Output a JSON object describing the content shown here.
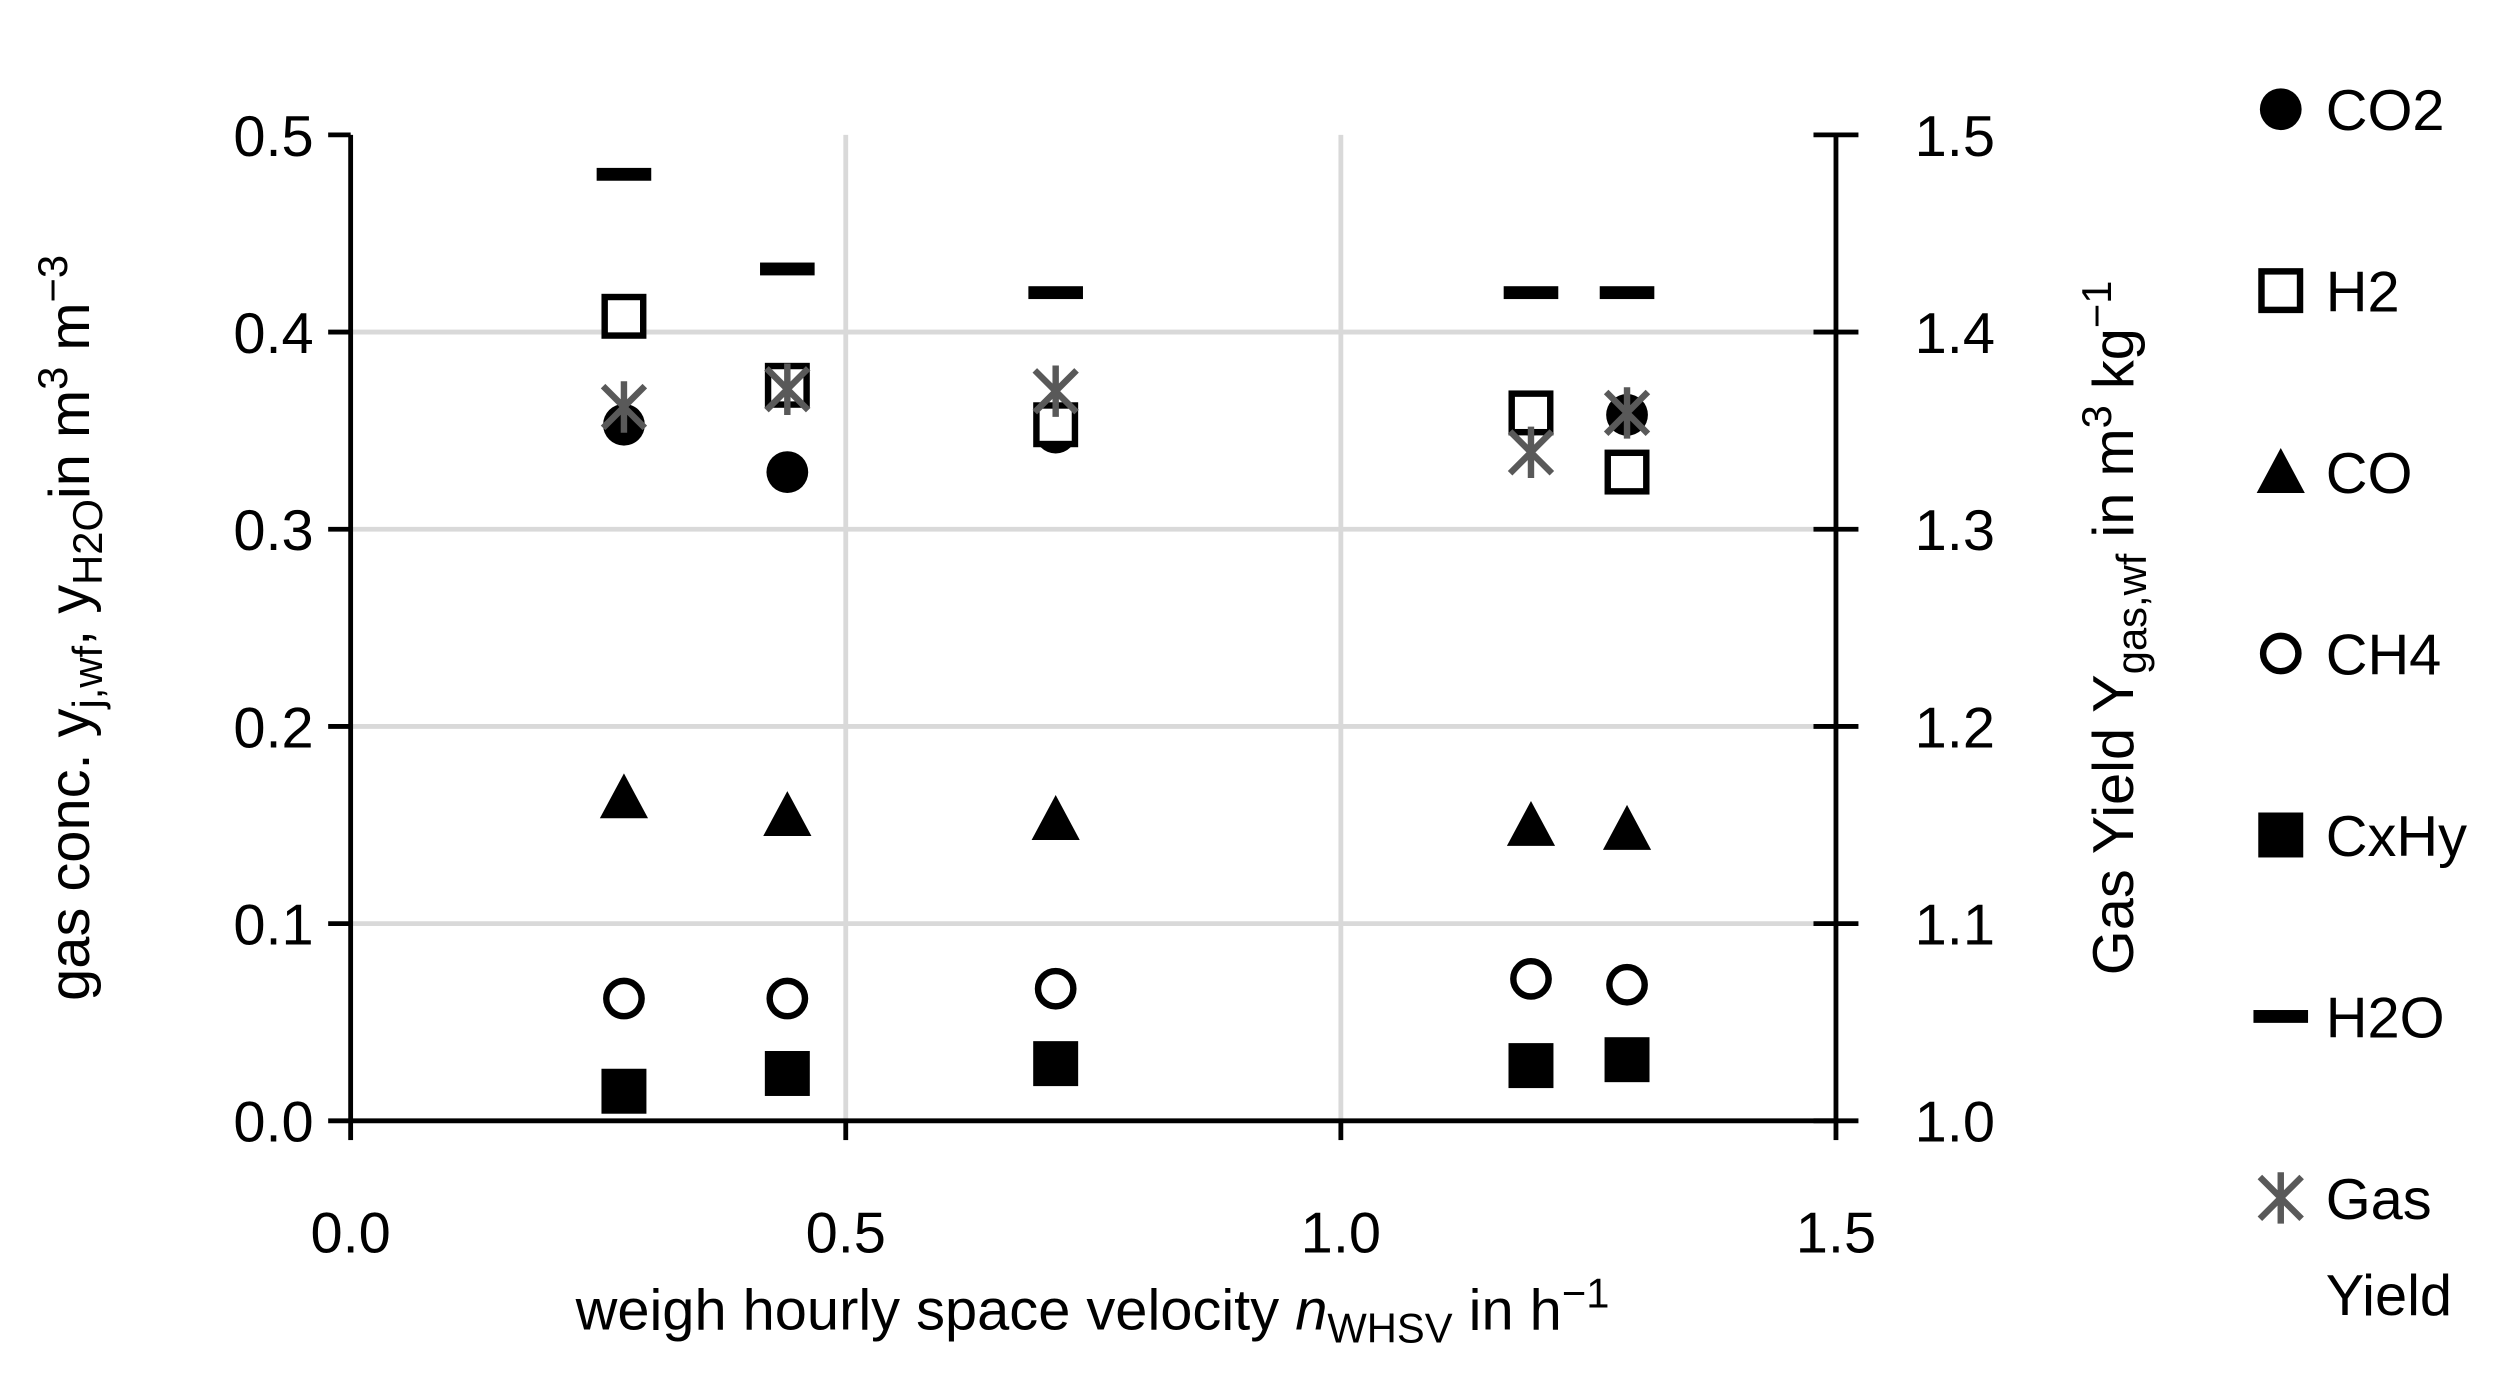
{
  "chart_data": {
    "type": "scatter",
    "x_label": [
      "weigh hourly space velocity ",
      "n",
      "WHSV",
      " in h",
      "−1"
    ],
    "y_label": [
      "gas conc. y",
      "j,wf",
      ",  y",
      "H2O",
      "in m",
      "3",
      " m",
      "−3"
    ],
    "y2_label": [
      "Gas Yield Y",
      "gas,wf",
      " in m",
      "3",
      " kg",
      "−1"
    ],
    "xlim": [
      0,
      1.5
    ],
    "xticks": [
      {
        "value": 0,
        "label": "0.0"
      },
      0.5,
      {
        "value": 1,
        "label": "1.0"
      },
      1.5
    ],
    "ylim": [
      0,
      0.5
    ],
    "yticks": [
      {
        "value": 0,
        "label": "0.0"
      },
      0.1,
      0.2,
      0.3,
      0.4,
      0.5
    ],
    "y2lim": [
      1,
      1.5
    ],
    "y2ticks": [
      {
        "value": 1,
        "label": "1.0"
      },
      1.1,
      1.2,
      1.3,
      1.4,
      1.5
    ],
    "grid": true,
    "legend": "right",
    "x": [
      0.276,
      0.441,
      0.712,
      1.192,
      1.289
    ],
    "series": [
      {
        "name": "CO2",
        "color": "#000000",
        "marker": "filled-circle",
        "values": [
          0.353,
          0.329,
          0.349,
          0.358,
          0.358
        ]
      },
      {
        "name": "H2",
        "color": "#000000",
        "marker": "open-square",
        "values": [
          0.408,
          0.373,
          0.353,
          0.359,
          0.329
        ]
      },
      {
        "name": "CO",
        "color": "#000000",
        "marker": "triangle",
        "values": [
          0.164,
          0.155,
          0.153,
          0.15,
          0.148
        ]
      },
      {
        "name": "CH4",
        "color": "#000000",
        "marker": "open-circle",
        "values": [
          0.062,
          0.062,
          0.067,
          0.072,
          0.069
        ]
      },
      {
        "name": "CxHy",
        "color": "#000000",
        "marker": "filled-square",
        "values": [
          0.015,
          0.024,
          0.029,
          0.028,
          0.031
        ]
      },
      {
        "name": "H2O",
        "color": "#000000",
        "marker": "dash",
        "values": [
          0.48,
          0.432,
          0.42,
          0.42,
          0.42
        ]
      },
      {
        "name": "Gas Yield",
        "color": "#595959",
        "marker": "asterisk",
        "axis": "y2",
        "values": [
          1.362,
          1.371,
          1.37,
          1.339,
          1.359
        ]
      }
    ]
  }
}
